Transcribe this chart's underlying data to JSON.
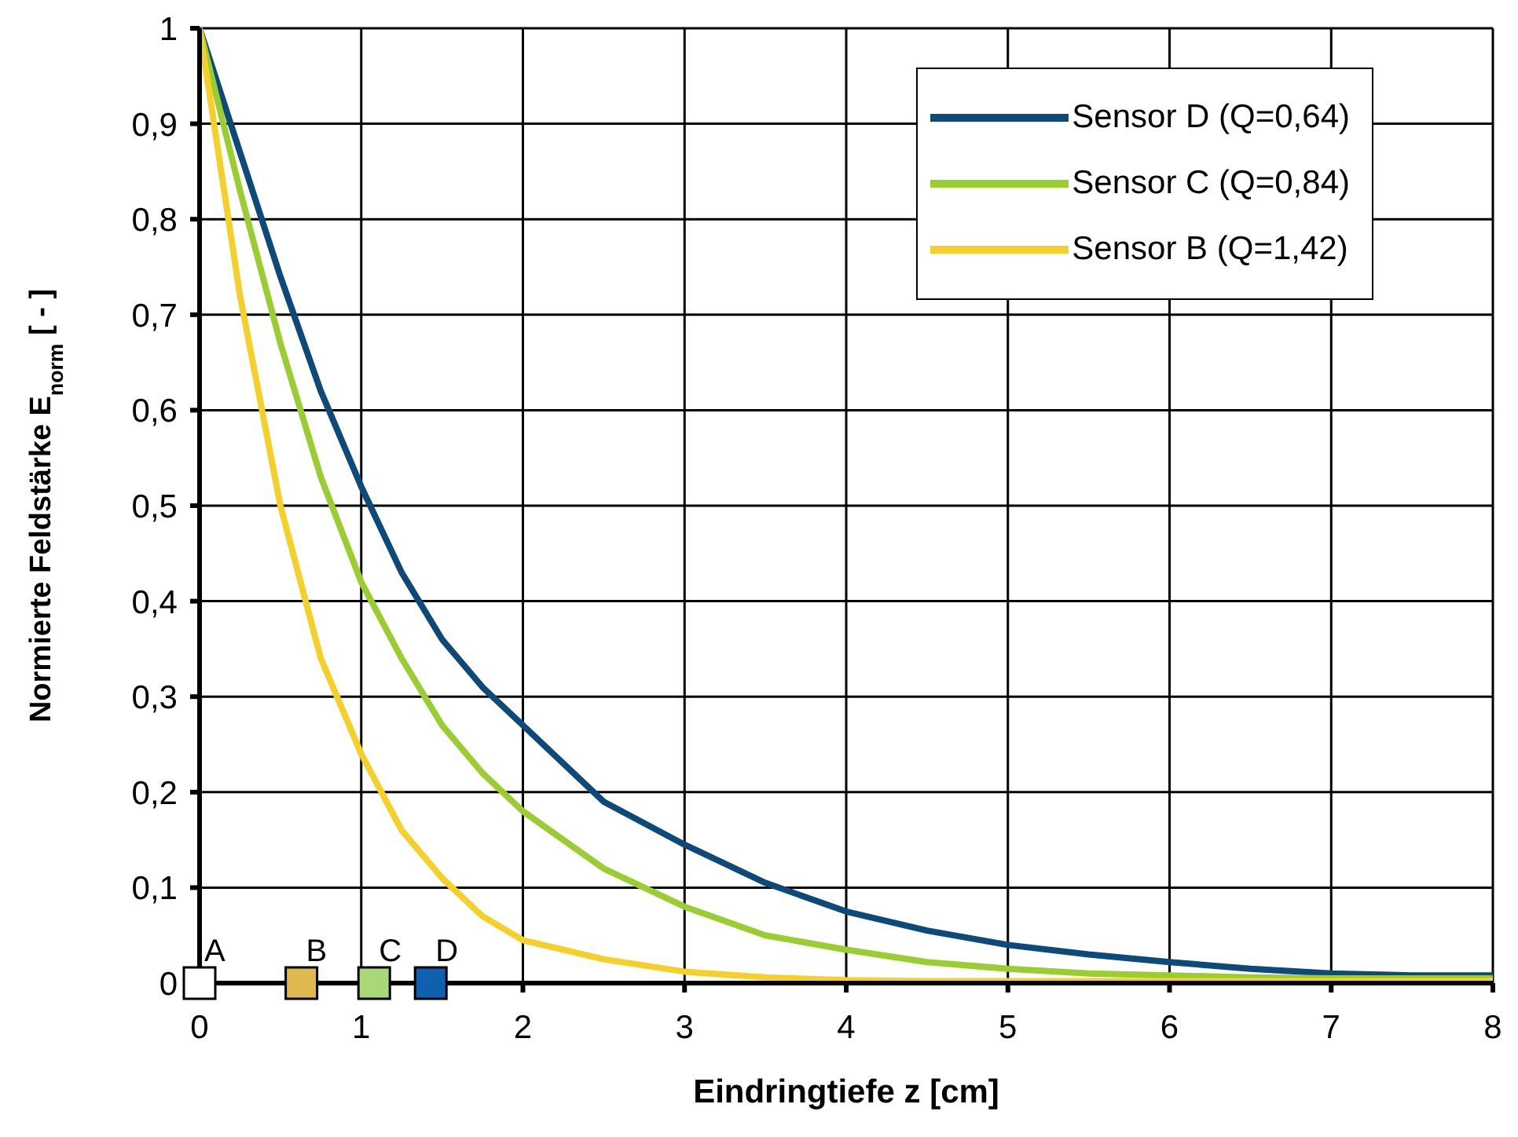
{
  "chart_data": {
    "type": "line",
    "xlabel": "Eindringtiefe z [cm]",
    "ylabel": "Normierte Feldstärke E$_{norm}$  [ - ]",
    "xlim": [
      0,
      8
    ],
    "xticks": [
      0,
      1,
      2,
      3,
      4,
      5,
      6,
      7,
      8
    ],
    "ylim": [
      0,
      1
    ],
    "yticks": [
      {
        "value": 0,
        "label": "0"
      },
      {
        "value": 0.1,
        "label": "0,1"
      },
      {
        "value": 0.2,
        "label": "0,2"
      },
      {
        "value": 0.3,
        "label": "0,3"
      },
      {
        "value": 0.4,
        "label": "0,4"
      },
      {
        "value": 0.5,
        "label": "0,5"
      },
      {
        "value": 0.6,
        "label": "0,6"
      },
      {
        "value": 0.7,
        "label": "0,7"
      },
      {
        "value": 0.8,
        "label": "0,8"
      },
      {
        "value": 0.9,
        "label": "0,9"
      },
      {
        "value": 1,
        "label": "1"
      }
    ],
    "grid": true,
    "legend": "top right",
    "marker": "none",
    "line_style": "solid",
    "series": [
      {
        "name": "Sensor D (Q=0,64)",
        "color": "#0d4a7a",
        "x": [
          0,
          0.25,
          0.5,
          0.75,
          1,
          1.25,
          1.5,
          1.75,
          2,
          2.5,
          3,
          3.5,
          4,
          4.5,
          5,
          5.5,
          6,
          6.5,
          7,
          7.5,
          8
        ],
        "values": [
          1,
          0.87,
          0.74,
          0.62,
          0.52,
          0.43,
          0.36,
          0.31,
          0.27,
          0.19,
          0.145,
          0.105,
          0.075,
          0.055,
          0.04,
          0.03,
          0.022,
          0.015,
          0.01,
          0.008,
          0.008
        ]
      },
      {
        "name": "Sensor C (Q=0,84)",
        "color": "#9acd32",
        "x": [
          0,
          0.25,
          0.5,
          0.75,
          1,
          1.25,
          1.5,
          1.75,
          2,
          2.5,
          3,
          3.5,
          4,
          4.5,
          5,
          5.5,
          6,
          6.5,
          7,
          7.5,
          8
        ],
        "values": [
          1,
          0.83,
          0.67,
          0.53,
          0.42,
          0.34,
          0.27,
          0.22,
          0.18,
          0.12,
          0.08,
          0.05,
          0.035,
          0.022,
          0.015,
          0.01,
          0.008,
          0.006,
          0.005,
          0.005,
          0.005
        ]
      },
      {
        "name": "Sensor B (Q=1,42)",
        "color": "#f5cf2a",
        "x": [
          0,
          0.25,
          0.5,
          0.75,
          1,
          1.25,
          1.5,
          1.75,
          2,
          2.5,
          3,
          3.5,
          4,
          4.5,
          5,
          6,
          7,
          8
        ],
        "values": [
          1,
          0.72,
          0.5,
          0.34,
          0.24,
          0.16,
          0.11,
          0.07,
          0.045,
          0.025,
          0.012,
          0.006,
          0.003,
          0.002,
          0.002,
          0.002,
          0.002,
          0.002
        ]
      },
      {
        "type": "scatter",
        "marker": "square",
        "x": [
          0,
          0.63,
          1.08,
          1.43
        ],
        "values": [
          0,
          0,
          0,
          0
        ],
        "colors": [
          "#ffffff",
          "#e0b850",
          "#a8d878",
          "#1060b0"
        ]
      }
    ],
    "annotations": [
      {
        "text": "A",
        "x": 0,
        "y": 0
      },
      {
        "text": "B",
        "x": 0.63,
        "y": 0
      },
      {
        "text": "C",
        "x": 1.08,
        "y": 0
      },
      {
        "text": "D",
        "x": 1.43,
        "y": 0
      }
    ]
  }
}
